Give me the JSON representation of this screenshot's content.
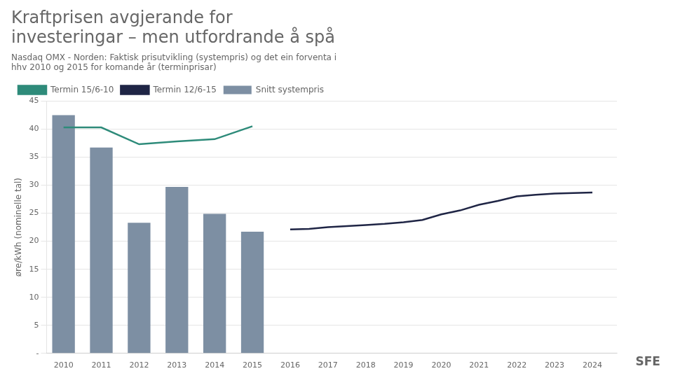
{
  "chart_data": {
    "type": "bar",
    "title": "Kraftprisen avgjerande for\ninvesteringar – men utfordrande å spå",
    "subtitle": "Nasdaq OMX - Norden: Faktisk prisutvikling (systempris) og det ein forventa i\nhhv 2010 og 2015 for komande år (terminprisar)",
    "ylabel": "øre/kWh (nominelle tal)",
    "series": [
      {
        "name": "Snitt systempris",
        "type": "bar",
        "color": "#7d8fa3",
        "x": [
          2010,
          2011,
          2012,
          2013,
          2014,
          2015
        ],
        "values": [
          42.5,
          36.7,
          23.3,
          29.7,
          24.9,
          21.7
        ]
      },
      {
        "name": "Termin 15/6-10",
        "type": "line",
        "color": "#2e8b7a",
        "x": [
          2010,
          2011,
          2012,
          2013,
          2014,
          2015
        ],
        "values": [
          40.3,
          40.3,
          37.3,
          37.8,
          38.2,
          40.5
        ]
      },
      {
        "name": "Termin 12/6-15",
        "type": "line",
        "color": "#1f2545",
        "x": [
          2016,
          2016.5,
          2017,
          2017.5,
          2018,
          2018.5,
          2019,
          2019.5,
          2020,
          2020.5,
          2021,
          2021.5,
          2022,
          2022.5,
          2023,
          2023.5,
          2024
        ],
        "values": [
          22.1,
          22.2,
          22.5,
          22.7,
          22.9,
          23.1,
          23.4,
          23.8,
          24.8,
          25.5,
          26.5,
          27.2,
          28.0,
          28.3,
          28.5,
          28.6,
          28.7
        ]
      }
    ],
    "xlim": [
      2009.55,
      2024.65
    ],
    "xticks": [
      2010,
      2011,
      2012,
      2013,
      2014,
      2015,
      2016,
      2017,
      2018,
      2019,
      2020,
      2021,
      2022,
      2023,
      2024
    ],
    "ylim": [
      0,
      45
    ],
    "yticks": [
      {
        "value": 0,
        "label": "-"
      },
      5,
      10,
      15,
      20,
      25,
      30,
      35,
      40,
      45
    ],
    "grid": "y",
    "legend": "upper left",
    "annotations": [
      "SFE"
    ]
  }
}
